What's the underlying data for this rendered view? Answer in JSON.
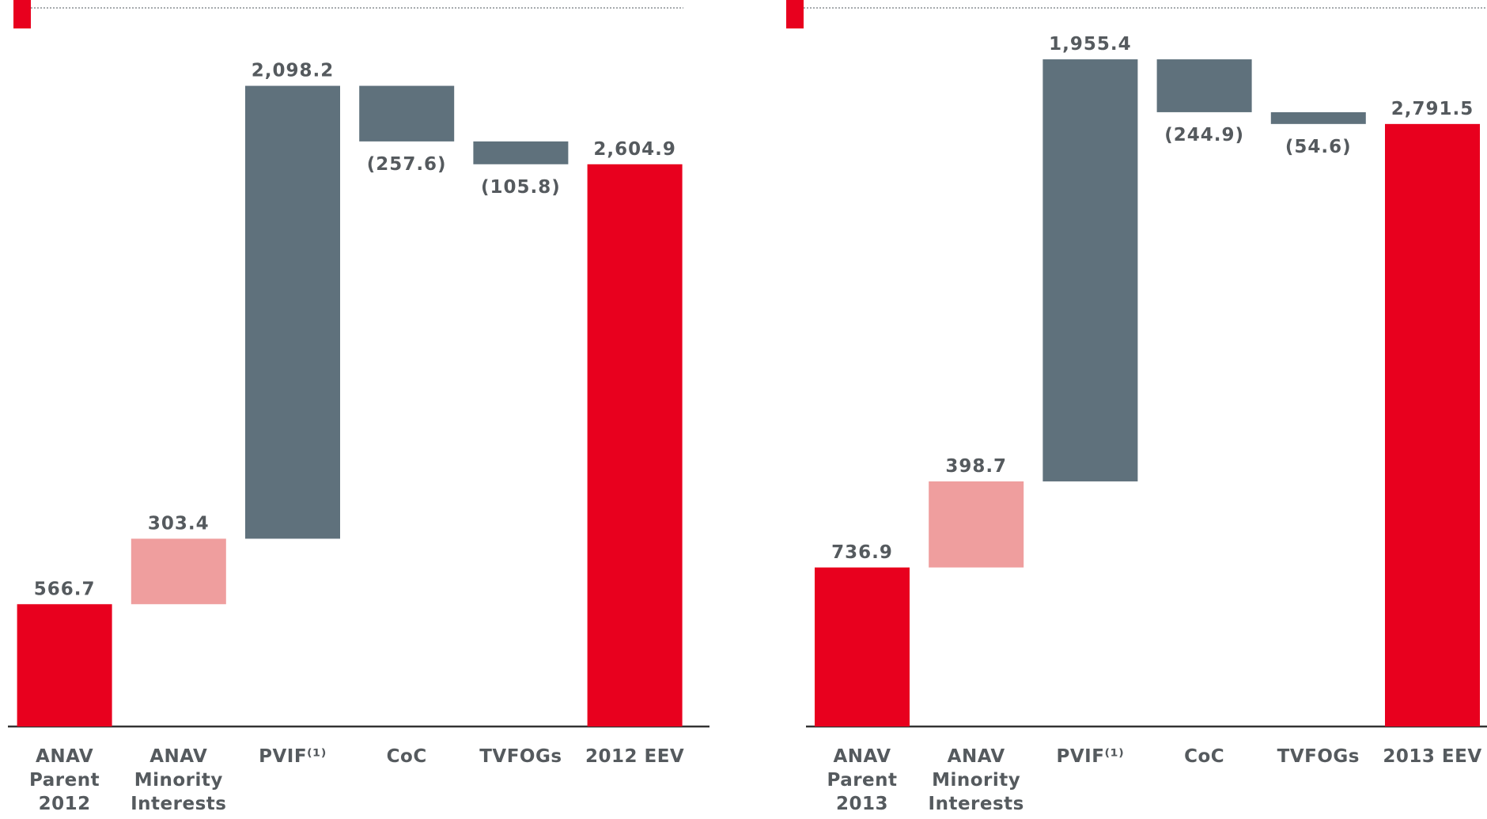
{
  "chart_data": [
    {
      "type": "waterfall",
      "categories": [
        "ANAV\nParent\n2012",
        "ANAV\nMinority\nInterests",
        "PVIF⁽¹⁾",
        "CoC",
        "TVFOGs",
        "2012 EEV"
      ],
      "values": [
        566.7,
        303.4,
        2098.2,
        -257.6,
        -105.8,
        2604.9
      ],
      "value_labels": [
        "566.7",
        "303.4",
        "2,098.2",
        "(257.6)",
        "(105.8)",
        "2,604.9"
      ],
      "measure": [
        "absolute",
        "relative",
        "relative",
        "relative",
        "relative",
        "total"
      ],
      "colors": [
        "#e8001e",
        "#ef9e9e",
        "#5f717c",
        "#5f717c",
        "#5f717c",
        "#e8001e"
      ],
      "ylim": [
        0,
        3300
      ]
    },
    {
      "type": "waterfall",
      "categories": [
        "ANAV\nParent\n2013",
        "ANAV\nMinority\nInterests",
        "PVIF⁽¹⁾",
        "CoC",
        "TVFOGs",
        "2013 EEV"
      ],
      "values": [
        736.9,
        398.7,
        1955.4,
        -244.9,
        -54.6,
        2791.5
      ],
      "value_labels": [
        "736.9",
        "398.7",
        "1,955.4",
        "(244.9)",
        "(54.6)",
        "2,791.5"
      ],
      "measure": [
        "absolute",
        "relative",
        "relative",
        "relative",
        "relative",
        "total"
      ],
      "colors": [
        "#e8001e",
        "#ef9e9e",
        "#5f717c",
        "#5f717c",
        "#5f717c",
        "#e8001e"
      ],
      "ylim": [
        0,
        3300
      ]
    }
  ]
}
